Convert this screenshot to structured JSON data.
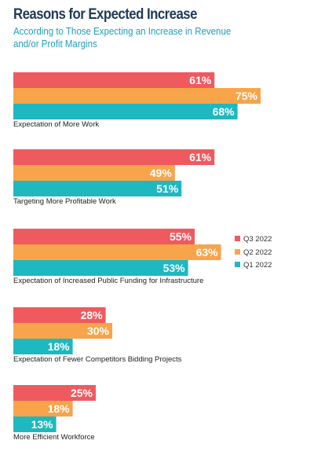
{
  "chart_data": {
    "type": "bar",
    "orientation": "horizontal",
    "title": "Reasons for Expected Increase",
    "subtitle": "According to Those Expecting an Increase in Revenue and/or Profit Margins",
    "categories": [
      "Expectation of More Work",
      "Targeting More Profitable Work",
      "Expectation of Increased Public Funding for Infrastructure",
      "Expectation of Fewer Competitors Bidding Projects",
      "More Efficient Workforce"
    ],
    "series": [
      {
        "name": "Q3 2022",
        "color": "#ef5a5f",
        "values": [
          61,
          61,
          55,
          28,
          25
        ]
      },
      {
        "name": "Q2 2022",
        "color": "#f7a44a",
        "values": [
          75,
          49,
          63,
          30,
          18
        ]
      },
      {
        "name": "Q1 2022",
        "color": "#1eb8c0",
        "values": [
          68,
          51,
          53,
          18,
          13
        ]
      }
    ],
    "value_suffix": "%",
    "xlim": [
      0,
      100
    ],
    "grid": false,
    "legend_position": "right"
  }
}
